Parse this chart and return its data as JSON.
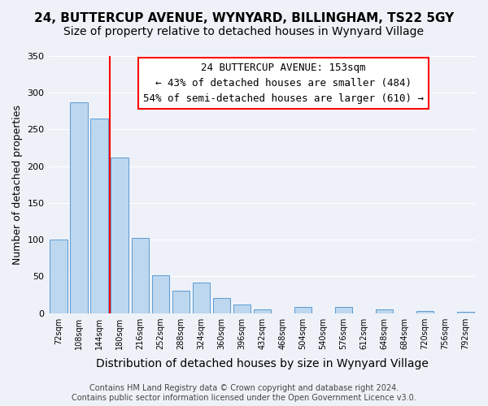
{
  "title": "24, BUTTERCUP AVENUE, WYNYARD, BILLINGHAM, TS22 5GY",
  "subtitle": "Size of property relative to detached houses in Wynyard Village",
  "xlabel": "Distribution of detached houses by size in Wynyard Village",
  "ylabel": "Number of detached properties",
  "bar_color": "#bdd7ee",
  "bar_edge_color": "#5b9bd5",
  "background_color": "#eef2f8",
  "grid_color": "#ffffff",
  "categories": [
    "72sqm",
    "108sqm",
    "144sqm",
    "180sqm",
    "216sqm",
    "252sqm",
    "288sqm",
    "324sqm",
    "360sqm",
    "396sqm",
    "432sqm",
    "468sqm",
    "504sqm",
    "540sqm",
    "576sqm",
    "612sqm",
    "648sqm",
    "684sqm",
    "720sqm",
    "756sqm",
    "792sqm"
  ],
  "values": [
    100,
    287,
    265,
    212,
    102,
    51,
    30,
    41,
    20,
    12,
    5,
    0,
    8,
    0,
    8,
    0,
    5,
    0,
    3,
    0,
    2
  ],
  "ylim": [
    0,
    350
  ],
  "yticks": [
    0,
    50,
    100,
    150,
    200,
    250,
    300,
    350
  ],
  "property_line_x": 2.5,
  "annotation_line1": "24 BUTTERCUP AVENUE: 153sqm",
  "annotation_line2": "← 43% of detached houses are smaller (484)",
  "annotation_line3": "54% of semi-detached houses are larger (610) →",
  "footer_text": "Contains HM Land Registry data © Crown copyright and database right 2024.\nContains public sector information licensed under the Open Government Licence v3.0.",
  "title_fontsize": 11,
  "subtitle_fontsize": 10,
  "xlabel_fontsize": 10,
  "ylabel_fontsize": 9,
  "annotation_fontsize": 9,
  "footer_fontsize": 7
}
